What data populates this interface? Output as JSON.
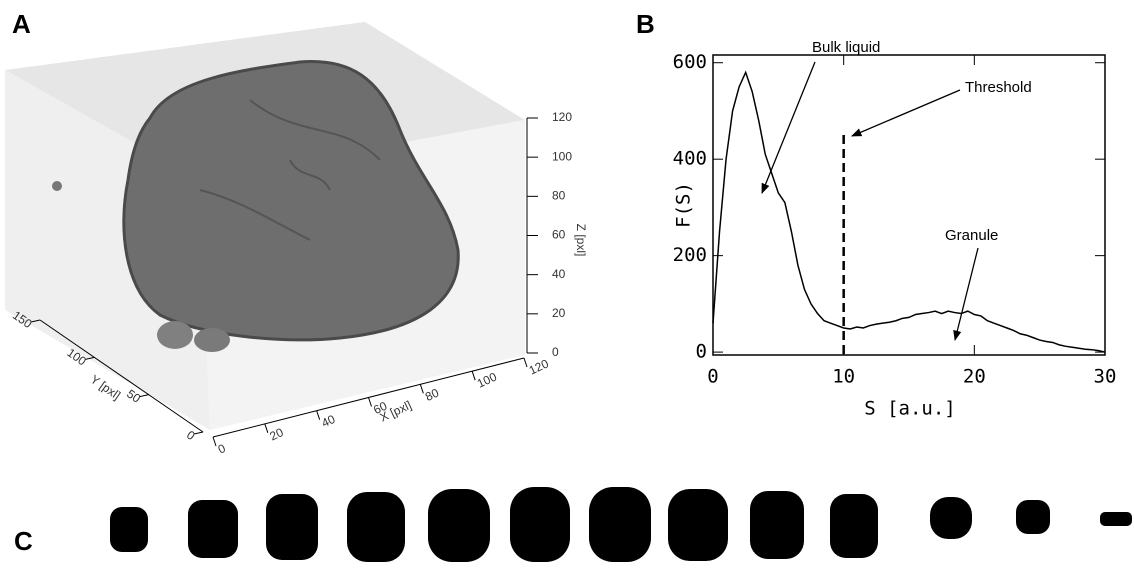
{
  "panel_labels": [
    "A",
    "B",
    "C"
  ],
  "panel_a": {
    "x_label": "X [pxl]",
    "x_ticks": [
      0,
      20,
      40,
      60,
      80,
      100,
      120
    ],
    "y_label": "Y [pxl]",
    "y_ticks": [
      0,
      50,
      100,
      150
    ],
    "z_label": "Z [pxl]",
    "z_ticks": [
      0,
      20,
      40,
      60,
      80,
      100,
      120
    ]
  },
  "chart_data": {
    "type": "line",
    "x_label": "S [a.u.]",
    "y_label": "F(S)",
    "color": "#000000",
    "x": [
      0,
      0.5,
      1,
      1.5,
      2,
      2.5,
      3,
      3.5,
      4,
      4.5,
      5,
      5.5,
      6,
      6.5,
      7,
      7.5,
      8,
      8.5,
      9,
      9.5,
      10,
      10.5,
      11,
      11.5,
      12,
      12.5,
      13,
      13.5,
      14,
      14.5,
      15,
      15.5,
      16,
      16.5,
      17,
      17.5,
      18,
      18.5,
      19,
      19.5,
      20,
      20.5,
      21,
      21.5,
      22,
      22.5,
      23,
      23.5,
      24,
      24.5,
      25,
      25.5,
      26,
      26.5,
      27,
      27.5,
      28,
      28.5,
      29,
      29.5,
      30
    ],
    "values": [
      60,
      250,
      400,
      500,
      550,
      580,
      540,
      480,
      410,
      370,
      330,
      310,
      250,
      180,
      130,
      100,
      80,
      65,
      60,
      55,
      50,
      48,
      52,
      50,
      55,
      58,
      60,
      62,
      65,
      70,
      72,
      78,
      80,
      82,
      85,
      80,
      85,
      82,
      80,
      85,
      78,
      75,
      65,
      60,
      55,
      50,
      45,
      38,
      35,
      30,
      25,
      22,
      20,
      15,
      12,
      10,
      8,
      6,
      5,
      3,
      0
    ],
    "threshold": 10,
    "xlim": [
      0,
      30
    ],
    "xticks": [
      0,
      10,
      20,
      30
    ],
    "ylim": [
      -6,
      616
    ],
    "yticks": [
      0,
      200,
      400,
      600
    ],
    "annotations": [
      "Bulk liquid",
      "Threshold",
      "Granule"
    ]
  }
}
